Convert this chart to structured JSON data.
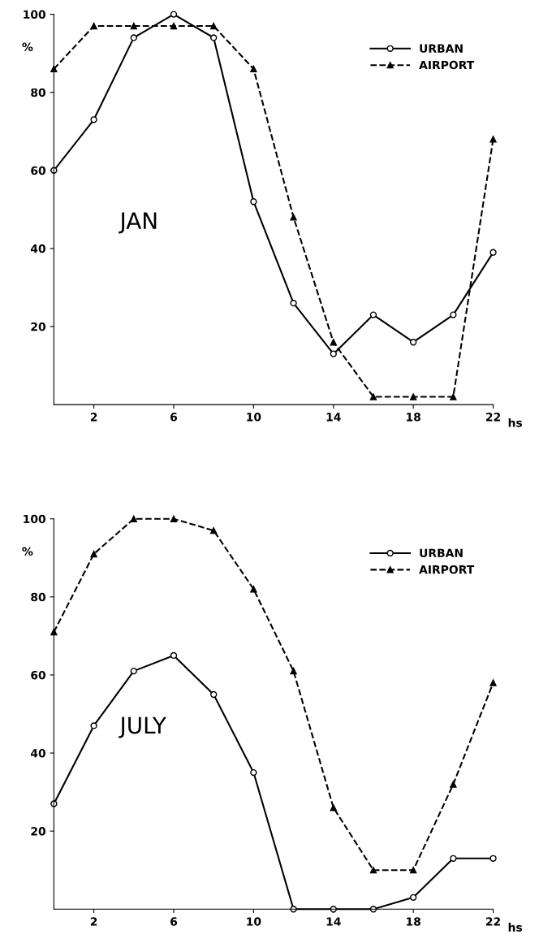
{
  "chart_data": [
    {
      "type": "line",
      "x": [
        0,
        2,
        4,
        6,
        8,
        10,
        12,
        14,
        16,
        18,
        20,
        22
      ],
      "xlabel": "hs",
      "ylabel": "%",
      "annotations": [
        "JAN"
      ],
      "series": [
        {
          "name": "URBAN",
          "color": "#000000",
          "marker": "circle",
          "line_style": "solid",
          "values": [
            60,
            73,
            94,
            100,
            94,
            52,
            26,
            13,
            23,
            16,
            23,
            39
          ]
        },
        {
          "name": "AIRPORT",
          "color": "#000000",
          "marker": "triangle",
          "line_style": "dashed",
          "values": [
            86,
            97,
            97,
            97,
            97,
            86,
            48,
            16,
            2,
            2,
            2,
            68
          ]
        }
      ],
      "xlim": [
        0,
        22
      ],
      "xticks": [
        2,
        6,
        10,
        14,
        18,
        22
      ],
      "ylim": [
        0,
        100
      ],
      "yticks": [
        20,
        40,
        60,
        80,
        100
      ],
      "grid": false,
      "legend": "top right"
    },
    {
      "type": "line",
      "x": [
        0,
        2,
        4,
        6,
        8,
        10,
        12,
        14,
        16,
        18,
        20,
        22
      ],
      "xlabel": "hs",
      "ylabel": "%",
      "annotations": [
        "JULY"
      ],
      "series": [
        {
          "name": "URBAN",
          "color": "#000000",
          "marker": "circle",
          "line_style": "solid",
          "values": [
            27,
            47,
            61,
            65,
            55,
            35,
            0,
            0,
            0,
            3,
            13,
            13
          ]
        },
        {
          "name": "AIRPORT",
          "color": "#000000",
          "marker": "triangle",
          "line_style": "dashed",
          "values": [
            71,
            91,
            100,
            100,
            97,
            82,
            61,
            26,
            10,
            10,
            32,
            58
          ]
        }
      ],
      "xlim": [
        0,
        22
      ],
      "xticks": [
        2,
        6,
        10,
        14,
        18,
        22
      ],
      "ylim": [
        0,
        100
      ],
      "yticks": [
        20,
        40,
        60,
        80,
        100
      ],
      "grid": false,
      "legend": "top right"
    }
  ]
}
